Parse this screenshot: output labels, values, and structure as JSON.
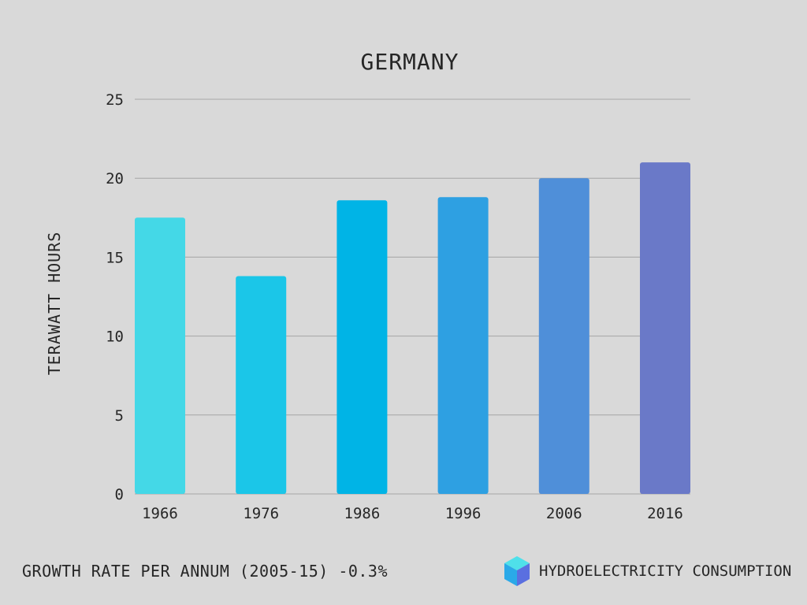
{
  "colors": {
    "background": "#d9d9d9",
    "grid": "#a6a6a6",
    "text": "#262626",
    "bars": [
      "#44d8e7",
      "#1bc6e8",
      "#00b4e6",
      "#2ea0e2",
      "#4f8fd9",
      "#6a79c8"
    ]
  },
  "footer": {
    "growth_note": "GROWTH RATE PER ANNUM (2005-15) -0.3%",
    "legend_label": "HYDROELECTRICITY CONSUMPTION",
    "legend_icon": "cube-icon"
  },
  "chart_data": {
    "type": "bar",
    "title": "GERMANY",
    "xlabel": "",
    "ylabel": "TERAWATT HOURS",
    "categories": [
      "1966",
      "1976",
      "1986",
      "1996",
      "2006",
      "2016"
    ],
    "values": [
      17.5,
      13.8,
      18.6,
      18.8,
      20.0,
      21.0
    ],
    "ylim": [
      0,
      25
    ],
    "yticks": [
      "0",
      "5",
      "10",
      "15",
      "20",
      "25"
    ],
    "grid": true
  }
}
